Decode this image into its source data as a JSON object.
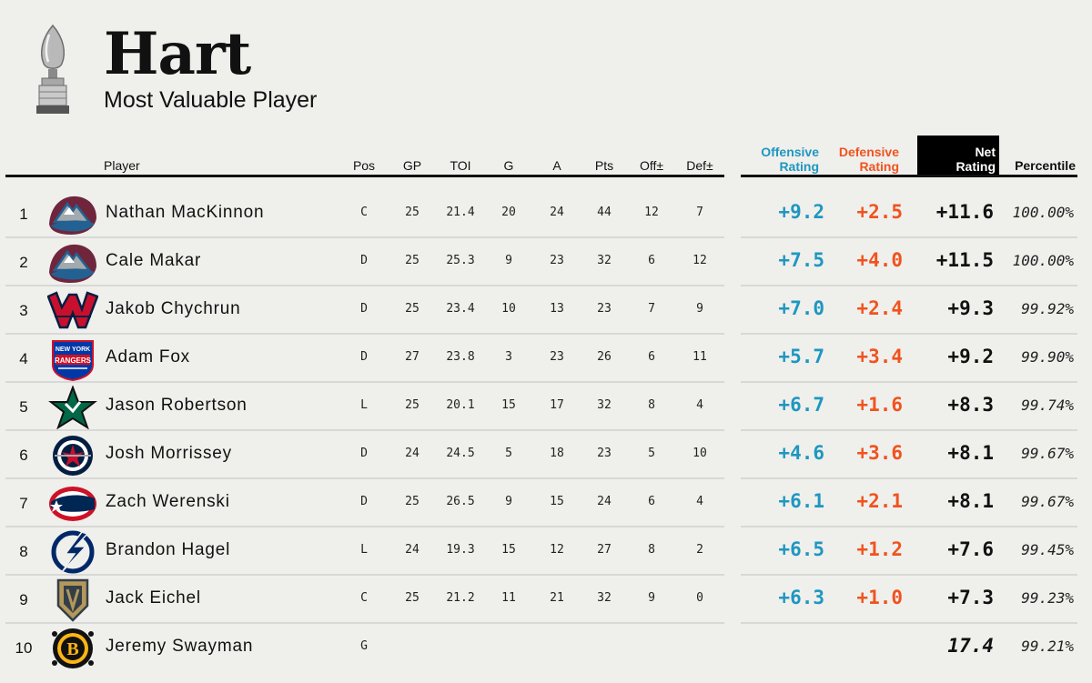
{
  "header": {
    "title": "Hart",
    "subtitle": "Most Valuable Player"
  },
  "columns": {
    "player": "Player",
    "pos": "Pos",
    "gp": "GP",
    "toi": "TOI",
    "g": "G",
    "a": "A",
    "pts": "Pts",
    "off_pm": "Off±",
    "def_pm": "Def±",
    "off_rating_1": "Offensive",
    "off_rating_2": "Rating",
    "def_rating_1": "Defensive",
    "def_rating_2": "Rating",
    "net_rating_1": "Net",
    "net_rating_2": "Rating",
    "percentile": "Percentile"
  },
  "colors": {
    "offensive": "#1e97c0",
    "defensive": "#f0531e",
    "background": "#efefec"
  },
  "players": [
    {
      "rank": "1",
      "name": "Nathan MacKinnon",
      "team_icon": "avalanche-logo-icon",
      "pos": "C",
      "gp": "25",
      "toi": "21.4",
      "g": "20",
      "a": "24",
      "pts": "44",
      "off_pm": "12",
      "def_pm": "7",
      "off": "+9.2",
      "def": "+2.5",
      "net": "+11.6",
      "pct": "100.00%"
    },
    {
      "rank": "2",
      "name": "Cale Makar",
      "team_icon": "avalanche-logo-icon",
      "pos": "D",
      "gp": "25",
      "toi": "25.3",
      "g": "9",
      "a": "23",
      "pts": "32",
      "off_pm": "6",
      "def_pm": "12",
      "off": "+7.5",
      "def": "+4.0",
      "net": "+11.5",
      "pct": "100.00%"
    },
    {
      "rank": "3",
      "name": "Jakob Chychrun",
      "team_icon": "capitals-logo-icon",
      "pos": "D",
      "gp": "25",
      "toi": "23.4",
      "g": "10",
      "a": "13",
      "pts": "23",
      "off_pm": "7",
      "def_pm": "9",
      "off": "+7.0",
      "def": "+2.4",
      "net": "+9.3",
      "pct": "99.92%"
    },
    {
      "rank": "4",
      "name": "Adam Fox",
      "team_icon": "rangers-logo-icon",
      "pos": "D",
      "gp": "27",
      "toi": "23.8",
      "g": "3",
      "a": "23",
      "pts": "26",
      "off_pm": "6",
      "def_pm": "11",
      "off": "+5.7",
      "def": "+3.4",
      "net": "+9.2",
      "pct": "99.90%"
    },
    {
      "rank": "5",
      "name": "Jason Robertson",
      "team_icon": "stars-logo-icon",
      "pos": "L",
      "gp": "25",
      "toi": "20.1",
      "g": "15",
      "a": "17",
      "pts": "32",
      "off_pm": "8",
      "def_pm": "4",
      "off": "+6.7",
      "def": "+1.6",
      "net": "+8.3",
      "pct": "99.74%"
    },
    {
      "rank": "6",
      "name": "Josh Morrissey",
      "team_icon": "jets-logo-icon",
      "pos": "D",
      "gp": "24",
      "toi": "24.5",
      "g": "5",
      "a": "18",
      "pts": "23",
      "off_pm": "5",
      "def_pm": "10",
      "off": "+4.6",
      "def": "+3.6",
      "net": "+8.1",
      "pct": "99.67%"
    },
    {
      "rank": "7",
      "name": "Zach Werenski",
      "team_icon": "blue-jackets-logo-icon",
      "pos": "D",
      "gp": "25",
      "toi": "26.5",
      "g": "9",
      "a": "15",
      "pts": "24",
      "off_pm": "6",
      "def_pm": "4",
      "off": "+6.1",
      "def": "+2.1",
      "net": "+8.1",
      "pct": "99.67%"
    },
    {
      "rank": "8",
      "name": "Brandon Hagel",
      "team_icon": "lightning-logo-icon",
      "pos": "L",
      "gp": "24",
      "toi": "19.3",
      "g": "15",
      "a": "12",
      "pts": "27",
      "off_pm": "8",
      "def_pm": "2",
      "off": "+6.5",
      "def": "+1.2",
      "net": "+7.6",
      "pct": "99.45%"
    },
    {
      "rank": "9",
      "name": "Jack Eichel",
      "team_icon": "golden-knights-logo-icon",
      "pos": "C",
      "gp": "25",
      "toi": "21.2",
      "g": "11",
      "a": "21",
      "pts": "32",
      "off_pm": "9",
      "def_pm": "0",
      "off": "+6.3",
      "def": "+1.0",
      "net": "+7.3",
      "pct": "99.23%"
    },
    {
      "rank": "10",
      "name": "Jeremy Swayman",
      "team_icon": "bruins-logo-icon",
      "pos": "G",
      "gp": "",
      "toi": "",
      "g": "",
      "a": "",
      "pts": "",
      "off_pm": "",
      "def_pm": "",
      "off": "",
      "def": "",
      "net": "17.4",
      "pct": "99.21%"
    }
  ]
}
